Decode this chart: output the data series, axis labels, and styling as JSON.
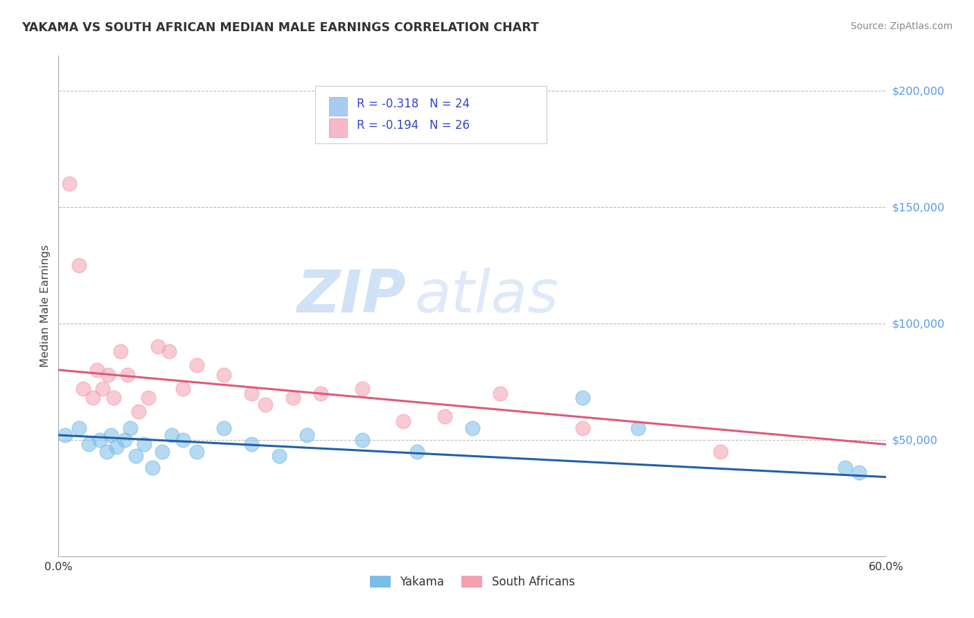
{
  "title": "YAKAMA VS SOUTH AFRICAN MEDIAN MALE EARNINGS CORRELATION CHART",
  "source": "Source: ZipAtlas.com",
  "ylabel": "Median Male Earnings",
  "x_range": [
    0.0,
    0.6
  ],
  "y_range": [
    0,
    215000
  ],
  "yakama_color": "#7bbde8",
  "yakama_line_color": "#2060a8",
  "sa_color": "#f4a0b0",
  "sa_line_color": "#e05878",
  "watermark_zip": "ZIP",
  "watermark_atlas": "atlas",
  "background_color": "#ffffff",
  "grid_color": "#bbbbbb",
  "title_color": "#333333",
  "source_color": "#888888",
  "ytick_color": "#5599ee",
  "legend_text_color": "#3344cc",
  "legend_R_color": "#dd4466",
  "yakama_scatter_x": [
    0.005,
    0.015,
    0.022,
    0.03,
    0.035,
    0.038,
    0.042,
    0.048,
    0.052,
    0.056,
    0.062,
    0.068,
    0.075,
    0.082,
    0.09,
    0.1,
    0.12,
    0.14,
    0.16,
    0.18,
    0.22,
    0.26,
    0.3,
    0.38,
    0.42,
    0.57,
    0.58
  ],
  "yakama_scatter_y": [
    52000,
    55000,
    48000,
    50000,
    45000,
    52000,
    47000,
    50000,
    55000,
    43000,
    48000,
    38000,
    45000,
    52000,
    50000,
    45000,
    55000,
    48000,
    43000,
    52000,
    50000,
    45000,
    55000,
    68000,
    55000,
    38000,
    36000
  ],
  "sa_scatter_x": [
    0.008,
    0.015,
    0.018,
    0.025,
    0.028,
    0.032,
    0.036,
    0.04,
    0.045,
    0.05,
    0.058,
    0.065,
    0.072,
    0.08,
    0.09,
    0.1,
    0.12,
    0.14,
    0.15,
    0.17,
    0.19,
    0.22,
    0.25,
    0.28,
    0.32,
    0.38,
    0.48
  ],
  "sa_scatter_y": [
    160000,
    125000,
    72000,
    68000,
    80000,
    72000,
    78000,
    68000,
    88000,
    78000,
    62000,
    68000,
    90000,
    88000,
    72000,
    82000,
    78000,
    70000,
    65000,
    68000,
    70000,
    72000,
    58000,
    60000,
    70000,
    55000,
    45000
  ],
  "yakama_line_x": [
    0.0,
    0.6
  ],
  "yakama_line_y": [
    52000,
    34000
  ],
  "sa_line_x": [
    0.0,
    0.6
  ],
  "sa_line_y": [
    80000,
    48000
  ]
}
